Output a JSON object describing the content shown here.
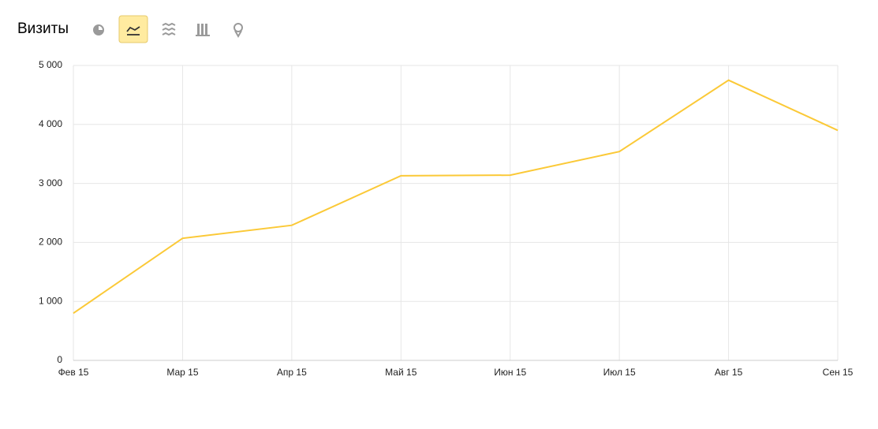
{
  "chart_data": {
    "type": "line",
    "title": "Визиты",
    "categories": [
      "Фев 15",
      "Мар 15",
      "Апр 15",
      "Май 15",
      "Июн 15",
      "Июл 15",
      "Авг 15",
      "Сен 15"
    ],
    "values": [
      800,
      2070,
      2290,
      3130,
      3140,
      3540,
      4750,
      3900
    ],
    "color": "#fbc937",
    "ylim": [
      0,
      5000
    ],
    "yticks": [
      0,
      {
        "value": 1000,
        "label": "1 000"
      },
      {
        "value": 2000,
        "label": "2 000"
      },
      {
        "value": 3000,
        "label": "3 000"
      },
      {
        "value": 4000,
        "label": "4 000"
      },
      {
        "value": 5000,
        "label": "5 000"
      }
    ],
    "grid": true
  }
}
